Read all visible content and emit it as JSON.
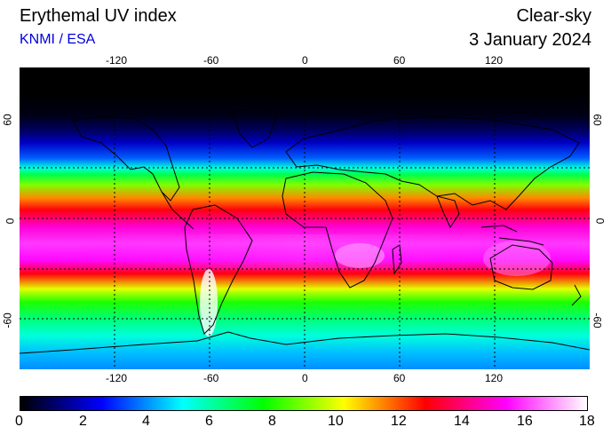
{
  "header": {
    "title": "Erythemal UV index",
    "subtitle": "KNMI / ESA",
    "sky_condition": "Clear-sky",
    "date": "3 January 2024"
  },
  "map": {
    "projection": "equirectangular",
    "lon_range": [
      -180,
      180
    ],
    "lat_range": [
      -90,
      90
    ],
    "lon_ticks": [
      "-120",
      "-60",
      "0",
      "60",
      "120"
    ],
    "lat_ticks": [
      "60",
      "0",
      "-60"
    ],
    "lon_tick_values": [
      -120,
      -60,
      0,
      60,
      120
    ],
    "lat_tick_values": [
      60,
      0,
      -60
    ],
    "gridlines": "dashed",
    "coastlines": true,
    "uv_by_latitude": [
      {
        "lat": 90,
        "uv": 0
      },
      {
        "lat": 75,
        "uv": 0
      },
      {
        "lat": 62,
        "uv": 0.2
      },
      {
        "lat": 52,
        "uv": 1
      },
      {
        "lat": 45,
        "uv": 2
      },
      {
        "lat": 36,
        "uv": 3.5
      },
      {
        "lat": 30,
        "uv": 5.5
      },
      {
        "lat": 26,
        "uv": 7
      },
      {
        "lat": 20,
        "uv": 9
      },
      {
        "lat": 12,
        "uv": 11.5
      },
      {
        "lat": 5,
        "uv": 13
      },
      {
        "lat": -5,
        "uv": 15
      },
      {
        "lat": -15,
        "uv": 16
      },
      {
        "lat": -25,
        "uv": 15.5
      },
      {
        "lat": -33,
        "uv": 13
      },
      {
        "lat": -42,
        "uv": 10
      },
      {
        "lat": -50,
        "uv": 8
      },
      {
        "lat": -60,
        "uv": 6.5
      },
      {
        "lat": -70,
        "uv": 5.5
      },
      {
        "lat": -80,
        "uv": 4.5
      },
      {
        "lat": -90,
        "uv": 4
      }
    ]
  },
  "colorbar": {
    "min": 0,
    "max": 18,
    "labels": [
      "0",
      "2",
      "4",
      "6",
      "8",
      "10",
      "12",
      "14",
      "16",
      "18"
    ],
    "colors": [
      "#000000",
      "#0000ff",
      "#00ffff",
      "#00ff00",
      "#ffff00",
      "#ff0000",
      "#ff00ff",
      "#ffffff"
    ]
  }
}
